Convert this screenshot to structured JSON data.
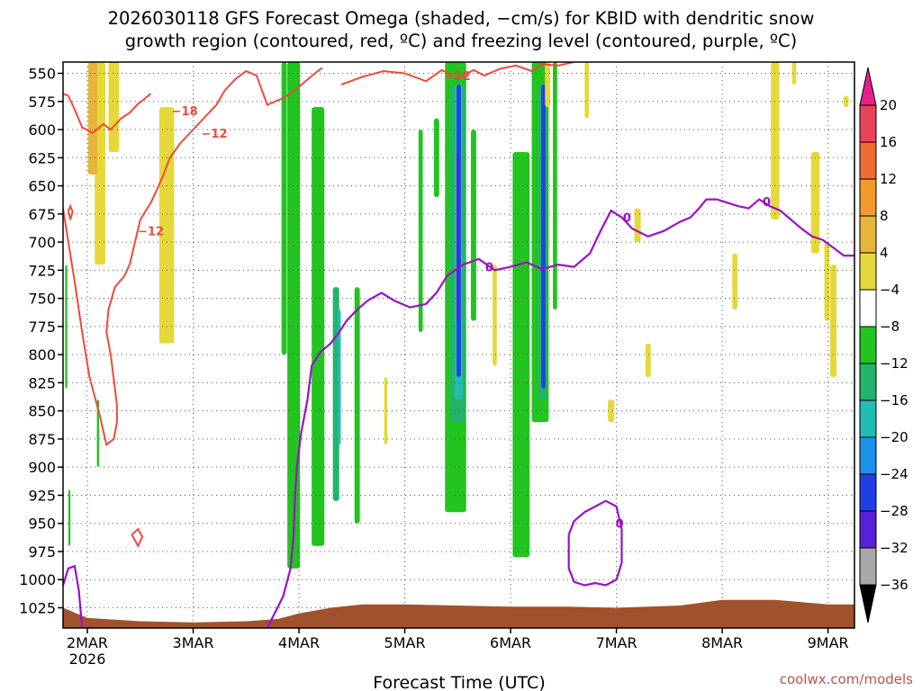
{
  "chart_data": {
    "type": "time-height-contour",
    "title_line1": "2026030118 GFS Forecast Omega (shaded, −cm/s) for KBID with dendritic snow",
    "title_line2": "growth region (contoured, red, ºC) and freezing level (contoured, purple, ºC)",
    "xlabel": "Forecast Time (UTC)",
    "credit": "coolwx.com/models",
    "x_ticks": [
      {
        "label": "2MAR",
        "sub": "2026",
        "day": 2
      },
      {
        "label": "3MAR",
        "day": 3
      },
      {
        "label": "4MAR",
        "day": 4
      },
      {
        "label": "5MAR",
        "day": 5
      },
      {
        "label": "6MAR",
        "day": 6
      },
      {
        "label": "7MAR",
        "day": 7
      },
      {
        "label": "8MAR",
        "day": 8
      },
      {
        "label": "9MAR",
        "day": 9
      }
    ],
    "xlim_days": [
      1.77,
      9.25
    ],
    "ylim_hpa": [
      1043,
      540
    ],
    "y_ticks": [
      "550",
      "575",
      "600",
      "625",
      "650",
      "675",
      "700",
      "725",
      "750",
      "775",
      "800",
      "825",
      "850",
      "875",
      "900",
      "925",
      "950",
      "975",
      "1000",
      "1025"
    ],
    "colorbar": {
      "labels": [
        "20",
        "16",
        "12",
        "8",
        "4",
        "−4",
        "−8",
        "−12",
        "−16",
        "−20",
        "−24",
        "−28",
        "−32",
        "−36"
      ],
      "colors": [
        "#e8435a",
        "#f06a36",
        "#f29a2e",
        "#e6b53c",
        "#e6d83a",
        "#ffffff",
        "#22c41f",
        "#23b36b",
        "#21bdb4",
        "#1c92e8",
        "#1f3fe6",
        "#5a1fd8",
        "#a010d0",
        "#a8a8a8"
      ],
      "top_arrow": "#e8208a",
      "bottom_arrow": "#000000"
    },
    "contour_labels": {
      "dgz_warm": "−12",
      "dgz_cold": "−18",
      "freezing": "0"
    },
    "dgz_m12_contour": [
      [
        1.77,
        670
      ],
      [
        1.82,
        700
      ],
      [
        1.88,
        735
      ],
      [
        1.95,
        780
      ],
      [
        2.02,
        820
      ],
      [
        2.12,
        855
      ],
      [
        2.18,
        880
      ],
      [
        2.25,
        875
      ],
      [
        2.28,
        860
      ],
      [
        2.28,
        845
      ],
      [
        2.26,
        830
      ],
      [
        2.22,
        800
      ],
      [
        2.18,
        780
      ],
      [
        2.2,
        760
      ],
      [
        2.26,
        740
      ],
      [
        2.35,
        730
      ],
      [
        2.4,
        720
      ],
      [
        2.45,
        700
      ],
      [
        2.5,
        680
      ],
      [
        2.6,
        665
      ],
      [
        2.65,
        655
      ],
      [
        2.72,
        640
      ],
      [
        2.78,
        625
      ],
      [
        2.88,
        612
      ],
      [
        3.0,
        600
      ],
      [
        3.1,
        590
      ],
      [
        3.22,
        578
      ],
      [
        3.3,
        565
      ],
      [
        3.4,
        555
      ],
      [
        3.5,
        548
      ],
      [
        3.6,
        552
      ],
      [
        3.7,
        578
      ],
      [
        3.85,
        572
      ],
      [
        3.95,
        566
      ],
      [
        4.05,
        558
      ],
      [
        4.15,
        550
      ],
      [
        4.22,
        545
      ]
    ],
    "dgz_m18_contour": [
      [
        1.77,
        568
      ],
      [
        1.82,
        570
      ],
      [
        1.88,
        582
      ],
      [
        1.95,
        598
      ],
      [
        2.05,
        603
      ],
      [
        2.15,
        595
      ],
      [
        2.22,
        600
      ],
      [
        2.32,
        590
      ],
      [
        2.4,
        585
      ],
      [
        2.48,
        577
      ],
      [
        2.55,
        572
      ],
      [
        2.6,
        568
      ]
    ],
    "dgz_low_loop": [
      [
        1.82,
        672
      ],
      [
        1.84,
        668
      ],
      [
        1.86,
        673
      ],
      [
        1.84,
        680
      ],
      [
        1.82,
        672
      ]
    ],
    "dgz_small_loop": [
      [
        2.42,
        960
      ],
      [
        2.48,
        955
      ],
      [
        2.52,
        962
      ],
      [
        2.48,
        970
      ],
      [
        2.42,
        960
      ]
    ],
    "dgz_upper_right": [
      [
        4.4,
        560
      ],
      [
        4.6,
        553
      ],
      [
        4.8,
        548
      ],
      [
        5.0,
        550
      ],
      [
        5.2,
        557
      ],
      [
        5.35,
        547
      ],
      [
        5.5,
        555
      ],
      [
        5.65,
        547
      ],
      [
        5.75,
        552
      ],
      [
        5.9,
        546
      ],
      [
        6.05,
        543
      ],
      [
        6.2,
        548
      ],
      [
        6.3,
        542
      ],
      [
        6.45,
        543
      ],
      [
        6.6,
        540
      ]
    ],
    "freezing_contour": [
      [
        1.77,
        1005
      ],
      [
        1.82,
        990
      ],
      [
        1.88,
        988
      ],
      [
        1.92,
        1010
      ],
      [
        1.95,
        1043
      ]
    ],
    "freezing_main": [
      [
        3.7,
        1043
      ],
      [
        3.85,
        1015
      ],
      [
        3.92,
        990
      ],
      [
        3.95,
        960
      ],
      [
        3.96,
        930
      ],
      [
        3.98,
        900
      ],
      [
        4.02,
        870
      ],
      [
        4.08,
        840
      ],
      [
        4.12,
        810
      ],
      [
        4.2,
        798
      ],
      [
        4.3,
        790
      ],
      [
        4.38,
        780
      ],
      [
        4.45,
        770
      ],
      [
        4.55,
        760
      ],
      [
        4.65,
        752
      ],
      [
        4.78,
        745
      ],
      [
        4.9,
        752
      ],
      [
        5.05,
        758
      ],
      [
        5.2,
        755
      ],
      [
        5.3,
        745
      ],
      [
        5.4,
        730
      ],
      [
        5.55,
        720
      ],
      [
        5.7,
        715
      ],
      [
        5.85,
        725
      ],
      [
        6.0,
        722
      ],
      [
        6.15,
        718
      ],
      [
        6.3,
        724
      ],
      [
        6.45,
        720
      ],
      [
        6.6,
        722
      ],
      [
        6.75,
        710
      ],
      [
        6.85,
        690
      ],
      [
        6.95,
        672
      ],
      [
        7.05,
        678
      ],
      [
        7.15,
        688
      ],
      [
        7.3,
        695
      ],
      [
        7.45,
        690
      ],
      [
        7.6,
        682
      ],
      [
        7.7,
        678
      ],
      [
        7.78,
        670
      ],
      [
        7.85,
        662
      ],
      [
        7.95,
        662
      ],
      [
        8.05,
        665
      ],
      [
        8.15,
        668
      ],
      [
        8.25,
        670
      ],
      [
        8.35,
        662
      ],
      [
        8.45,
        668
      ],
      [
        8.55,
        672
      ],
      [
        8.65,
        680
      ],
      [
        8.75,
        688
      ],
      [
        8.85,
        695
      ],
      [
        8.95,
        698
      ],
      [
        9.05,
        705
      ],
      [
        9.15,
        712
      ],
      [
        9.25,
        712
      ]
    ],
    "freezing_loop": [
      [
        6.55,
        960
      ],
      [
        6.6,
        948
      ],
      [
        6.7,
        940
      ],
      [
        6.8,
        935
      ],
      [
        6.9,
        930
      ],
      [
        7.0,
        935
      ],
      [
        7.05,
        955
      ],
      [
        7.05,
        985
      ],
      [
        7.0,
        1000
      ],
      [
        6.9,
        1005
      ],
      [
        6.8,
        1003
      ],
      [
        6.7,
        1005
      ],
      [
        6.6,
        1002
      ],
      [
        6.55,
        990
      ],
      [
        6.55,
        960
      ]
    ],
    "omega_bands": [
      {
        "day": 1.8,
        "top": 720,
        "bot": 830,
        "w": 0.02,
        "color": "#22c41f"
      },
      {
        "day": 2.04,
        "top": 540,
        "bot": 560,
        "w": 0.03,
        "color": "#22c41f"
      },
      {
        "day": 2.1,
        "top": 840,
        "bot": 900,
        "w": 0.02,
        "color": "#22c41f"
      },
      {
        "day": 2.12,
        "top": 540,
        "bot": 720,
        "w": 0.1,
        "color": "#e6d83a"
      },
      {
        "day": 2.05,
        "top": 540,
        "bot": 640,
        "w": 0.09,
        "color": "#e6b53c"
      },
      {
        "day": 2.25,
        "top": 540,
        "bot": 620,
        "w": 0.1,
        "color": "#e6d83a"
      },
      {
        "day": 1.83,
        "top": 920,
        "bot": 970,
        "w": 0.02,
        "color": "#22c41f"
      },
      {
        "day": 2.75,
        "top": 580,
        "bot": 790,
        "w": 0.14,
        "color": "#e6d83a"
      },
      {
        "day": 3.86,
        "top": 540,
        "bot": 800,
        "w": 0.05,
        "color": "#22c41f"
      },
      {
        "day": 3.95,
        "top": 540,
        "bot": 990,
        "w": 0.12,
        "color": "#22c41f"
      },
      {
        "day": 4.18,
        "top": 580,
        "bot": 970,
        "w": 0.12,
        "color": "#22c41f"
      },
      {
        "day": 4.35,
        "top": 740,
        "bot": 930,
        "w": 0.06,
        "color": "#23b36b"
      },
      {
        "day": 4.38,
        "top": 760,
        "bot": 880,
        "w": 0.03,
        "color": "#21bdb4"
      },
      {
        "day": 4.55,
        "top": 740,
        "bot": 950,
        "w": 0.05,
        "color": "#22c41f"
      },
      {
        "day": 4.82,
        "top": 820,
        "bot": 880,
        "w": 0.03,
        "color": "#e6d83a"
      },
      {
        "day": 5.15,
        "top": 600,
        "bot": 780,
        "w": 0.04,
        "color": "#22c41f"
      },
      {
        "day": 5.3,
        "top": 590,
        "bot": 660,
        "w": 0.05,
        "color": "#22c41f"
      },
      {
        "day": 5.48,
        "top": 540,
        "bot": 940,
        "w": 0.2,
        "color": "#22c41f"
      },
      {
        "day": 5.5,
        "top": 560,
        "bot": 860,
        "w": 0.14,
        "color": "#23b36b"
      },
      {
        "day": 5.51,
        "top": 560,
        "bot": 840,
        "w": 0.07,
        "color": "#21bdb4"
      },
      {
        "day": 5.51,
        "top": 560,
        "bot": 820,
        "w": 0.04,
        "color": "#1f3fe6"
      },
      {
        "day": 5.5,
        "top": 620,
        "bot": 770,
        "w": 0.02,
        "color": "#5a1fd8"
      },
      {
        "day": 5.65,
        "top": 600,
        "bot": 770,
        "w": 0.05,
        "color": "#22c41f"
      },
      {
        "day": 5.85,
        "top": 720,
        "bot": 810,
        "w": 0.04,
        "color": "#e6d83a"
      },
      {
        "day": 6.1,
        "top": 620,
        "bot": 980,
        "w": 0.16,
        "color": "#22c41f"
      },
      {
        "day": 6.28,
        "top": 540,
        "bot": 860,
        "w": 0.16,
        "color": "#22c41f"
      },
      {
        "day": 6.3,
        "top": 560,
        "bot": 840,
        "w": 0.08,
        "color": "#23b36b"
      },
      {
        "day": 6.31,
        "top": 560,
        "bot": 830,
        "w": 0.04,
        "color": "#1f3fe6"
      },
      {
        "day": 6.42,
        "top": 540,
        "bot": 760,
        "w": 0.04,
        "color": "#22c41f"
      },
      {
        "day": 6.72,
        "top": 540,
        "bot": 590,
        "w": 0.04,
        "color": "#e6d83a"
      },
      {
        "day": 7.2,
        "top": 670,
        "bot": 700,
        "w": 0.06,
        "color": "#e6d83a"
      },
      {
        "day": 6.95,
        "top": 840,
        "bot": 860,
        "w": 0.06,
        "color": "#e6d83a"
      },
      {
        "day": 7.3,
        "top": 790,
        "bot": 820,
        "w": 0.05,
        "color": "#e6d83a"
      },
      {
        "day": 8.12,
        "top": 710,
        "bot": 760,
        "w": 0.05,
        "color": "#e6d83a"
      },
      {
        "day": 8.5,
        "top": 540,
        "bot": 680,
        "w": 0.08,
        "color": "#e6d83a"
      },
      {
        "day": 8.68,
        "top": 540,
        "bot": 560,
        "w": 0.04,
        "color": "#e6d83a"
      },
      {
        "day": 8.88,
        "top": 620,
        "bot": 710,
        "w": 0.08,
        "color": "#e6d83a"
      },
      {
        "day": 8.99,
        "top": 700,
        "bot": 770,
        "w": 0.05,
        "color": "#e6d83a"
      },
      {
        "day": 9.05,
        "top": 720,
        "bot": 820,
        "w": 0.06,
        "color": "#e6d83a"
      },
      {
        "day": 9.17,
        "top": 570,
        "bot": 580,
        "w": 0.05,
        "color": "#e6d83a"
      },
      {
        "day": 6.35,
        "top": 540,
        "bot": 580,
        "w": 0.05,
        "color": "#e6d83a"
      }
    ],
    "terrain": {
      "color": "#a0522d",
      "points": [
        [
          1.77,
          1025
        ],
        [
          2.0,
          1034
        ],
        [
          2.5,
          1037
        ],
        [
          3.0,
          1038
        ],
        [
          3.5,
          1037
        ],
        [
          3.8,
          1035
        ],
        [
          4.0,
          1030
        ],
        [
          4.3,
          1025
        ],
        [
          4.6,
          1022
        ],
        [
          5.0,
          1022
        ],
        [
          5.5,
          1023
        ],
        [
          6.0,
          1024
        ],
        [
          6.5,
          1024
        ],
        [
          7.0,
          1025
        ],
        [
          7.3,
          1024
        ],
        [
          7.6,
          1023
        ],
        [
          8.0,
          1018
        ],
        [
          8.5,
          1018
        ],
        [
          9.0,
          1022
        ],
        [
          9.25,
          1022
        ]
      ]
    }
  }
}
